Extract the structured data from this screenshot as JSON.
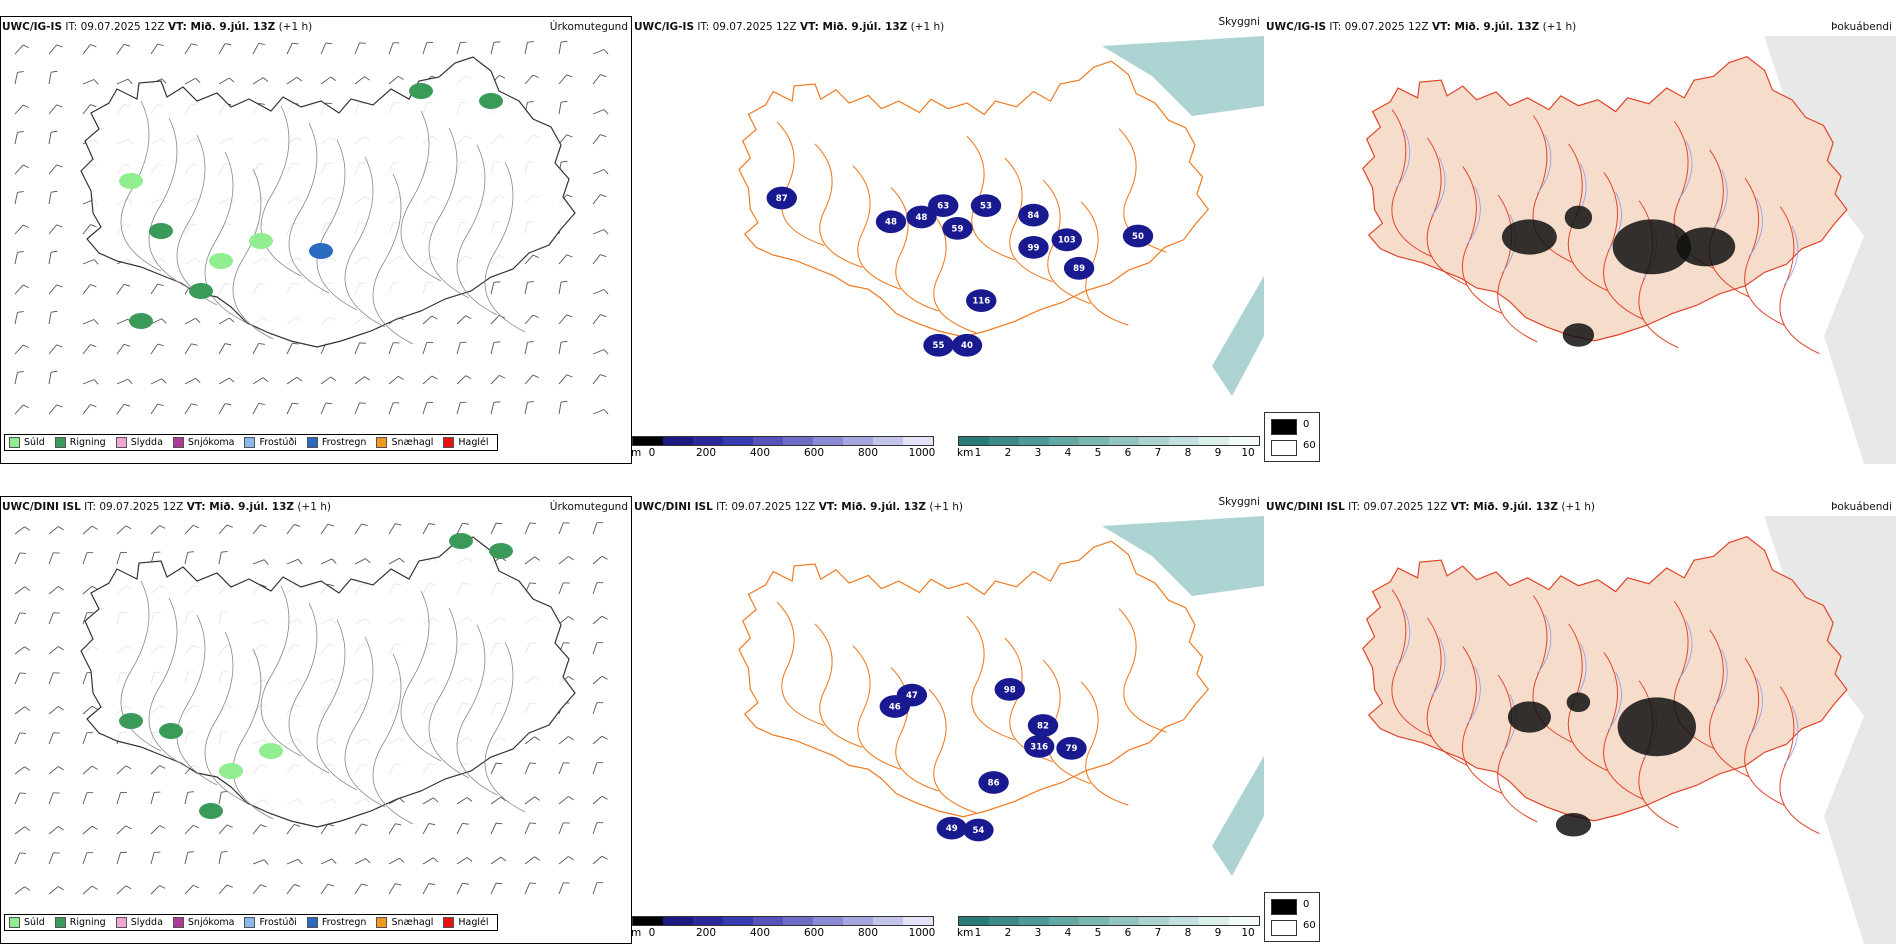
{
  "rows": [
    {
      "model": "UWC/IG-IS",
      "issue": " IT: 09.07.2025 12Z ",
      "valid_label": "VT: Mið. 9.júl. 13Z",
      "offset": " (+1 h)",
      "precip_labels": [
        "48",
        "48",
        "63",
        "59",
        "53",
        "84",
        "99",
        "103",
        "89",
        "50",
        "87",
        "116",
        "40",
        "55"
      ]
    },
    {
      "model": "UWC/DINI ISL",
      "issue": " IT: 09.07.2025 12Z ",
      "valid_label": "VT: Mið. 9.júl. 13Z",
      "offset": " (+1 h)",
      "precip_labels": [
        "47",
        "46",
        "98",
        "82",
        "316",
        "79",
        "54",
        "49",
        "86"
      ]
    }
  ],
  "panel_names": {
    "precip": "Úrkomutegund",
    "visibility": "Skyggni",
    "fog": "Þokuábendi"
  },
  "precip_legend": [
    {
      "label": "Súld",
      "color": "#90ee90"
    },
    {
      "label": "Rigning",
      "color": "#3a9a5a"
    },
    {
      "label": "Slydda",
      "color": "#f4a6d7"
    },
    {
      "label": "Snjókoma",
      "color": "#b03a9a"
    },
    {
      "label": "Frostúði",
      "color": "#8ab8ee"
    },
    {
      "label": "Frostregn",
      "color": "#2a6ac0"
    },
    {
      "label": "Snæhagl",
      "color": "#f09a20"
    },
    {
      "label": "Haglél",
      "color": "#e81010"
    }
  ],
  "ceiling_bar": {
    "unit": "m",
    "ticks": [
      "0",
      "200",
      "400",
      "600",
      "800",
      "1000"
    ],
    "colors": [
      "#000000",
      "#1a1a80",
      "#2a2a9a",
      "#3a3ab0",
      "#5454bb",
      "#6e6ec8",
      "#8a8ad4",
      "#a6a6de",
      "#c4c4ea",
      "#e2e2f6"
    ]
  },
  "visibility_bar": {
    "unit": "km",
    "ticks": [
      "1",
      "2",
      "3",
      "4",
      "5",
      "6",
      "7",
      "8",
      "9",
      "10"
    ],
    "colors": [
      "#2a7a78",
      "#3c8a88",
      "#4e9a96",
      "#64a8a4",
      "#7ab6b2",
      "#92c4c0",
      "#aad2ce",
      "#c2e0dc",
      "#daeeea",
      "#f2faf8"
    ]
  },
  "fog_legend": {
    "dark_label": "0",
    "light_label": "60",
    "dark_color": "#000000",
    "light_color": "#ffffff"
  },
  "colors": {
    "land_fog": "#f5dccb",
    "road": "#f07a20",
    "road_red": "#e0452a",
    "river": "#8a9af0",
    "cloud_base": "#1a1a90",
    "visibility_teal": "#5aa8a6"
  }
}
